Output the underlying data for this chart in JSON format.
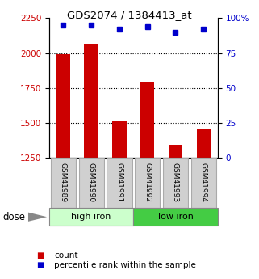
{
  "title": "GDS2074 / 1384413_at",
  "categories": [
    "GSM41989",
    "GSM41990",
    "GSM41991",
    "GSM41992",
    "GSM41993",
    "GSM41994"
  ],
  "bar_values": [
    1990,
    2060,
    1510,
    1790,
    1340,
    1450
  ],
  "dot_values": [
    95,
    95,
    92,
    94,
    90,
    92
  ],
  "bar_color": "#cc0000",
  "dot_color": "#0000cc",
  "ylim_left": [
    1250,
    2250
  ],
  "ylim_right": [
    0,
    100
  ],
  "yticks_left": [
    1250,
    1500,
    1750,
    2000,
    2250
  ],
  "yticks_right": [
    0,
    25,
    50,
    75,
    100
  ],
  "ytick_labels_right": [
    "0",
    "25",
    "50",
    "75",
    "100%"
  ],
  "group1_label": "high iron",
  "group2_label": "low iron",
  "group1_indices": [
    0,
    1,
    2
  ],
  "group2_indices": [
    3,
    4,
    5
  ],
  "group1_color": "#ccffcc",
  "group2_color": "#44cc44",
  "dose_label": "dose",
  "legend_count": "count",
  "legend_percentile": "percentile rank within the sample",
  "bar_bottom": 1250,
  "left_tick_color": "#cc0000",
  "right_tick_color": "#0000cc"
}
